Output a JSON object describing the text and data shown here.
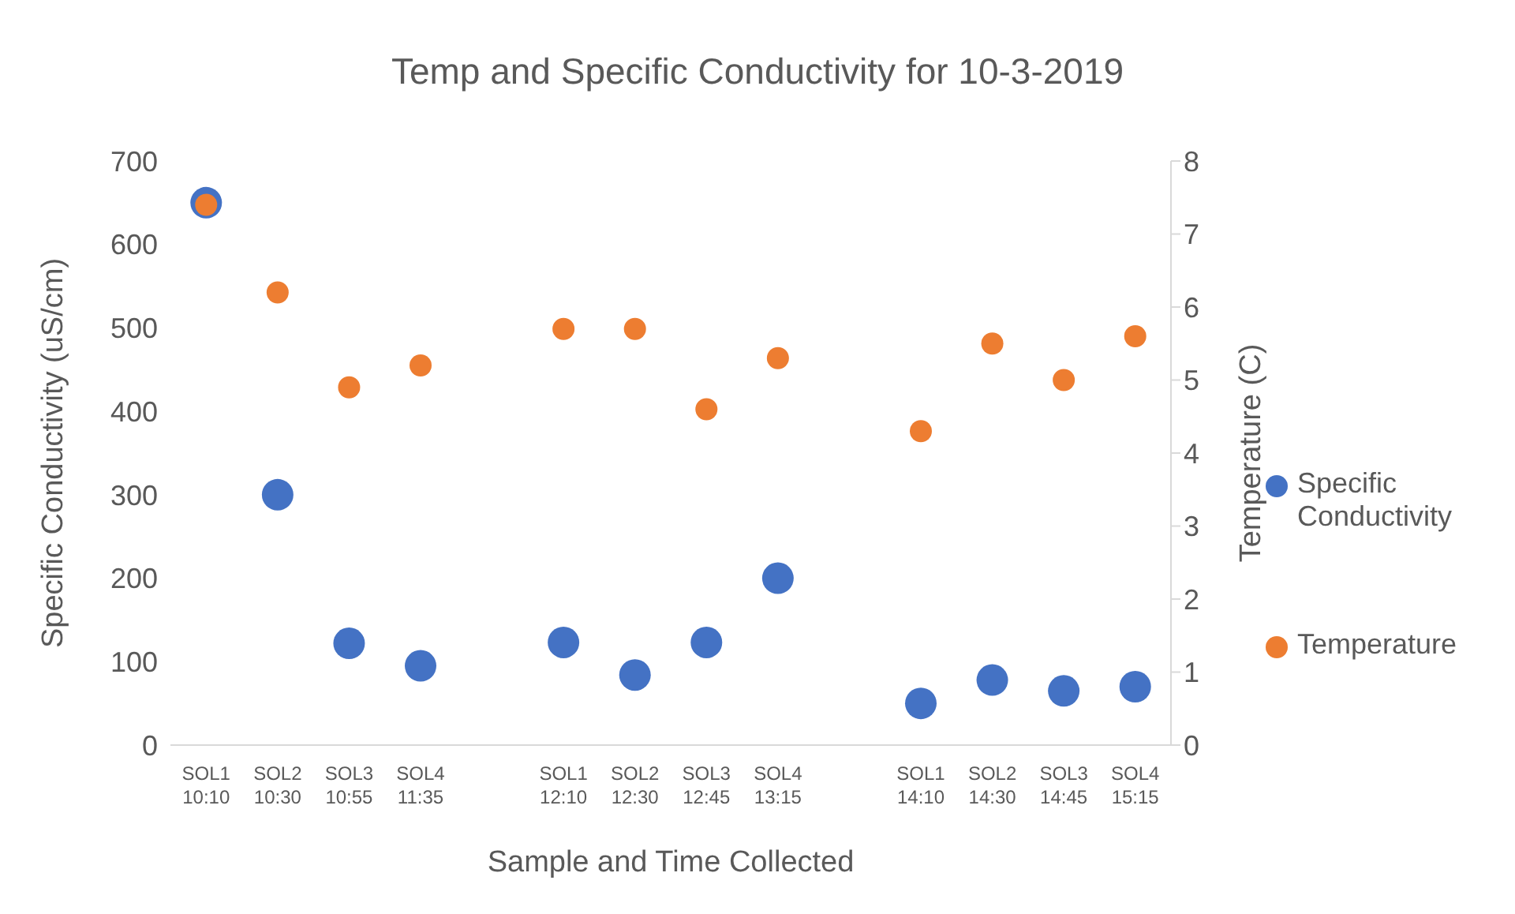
{
  "chart_data": {
    "type": "scatter",
    "title": "Temp and Specific Conductivity for 10-3-2019",
    "xlabel": "Sample and Time Collected",
    "ylabel": "Specific Conductivity (uS/cm)",
    "y2label": "Temperature  (C)",
    "categories": [
      "SOL1 10:10",
      "SOL2 10:30",
      "SOL3 10:55",
      "SOL4 11:35",
      null,
      "SOL1 12:10",
      "SOL2 12:30",
      "SOL3 12:45",
      "SOL4 13:15",
      null,
      "SOL1 14:10",
      "SOL2 14:30",
      "SOL3 14:45",
      "SOL4 15:15"
    ],
    "series": [
      {
        "name": "Specific Conductivity",
        "color": "#4472c4",
        "values": [
          650,
          300,
          122,
          95,
          null,
          123,
          84,
          123,
          200,
          null,
          50,
          78,
          65,
          70
        ]
      },
      {
        "name": "Temperature",
        "color": "#ed7d31",
        "axis": "y2",
        "values": [
          7.4,
          6.2,
          4.9,
          5.2,
          null,
          5.7,
          5.7,
          4.6,
          5.3,
          null,
          4.3,
          5.5,
          5.0,
          5.6
        ]
      }
    ],
    "ylim": [
      0,
      700
    ],
    "yticks": [
      0,
      100,
      200,
      300,
      400,
      500,
      600,
      700
    ],
    "y2lim": [
      0,
      8
    ],
    "y2ticks": [
      0,
      1,
      2,
      3,
      4,
      5,
      6,
      7,
      8
    ],
    "grid": false,
    "legend": "right",
    "marker": "circle"
  }
}
